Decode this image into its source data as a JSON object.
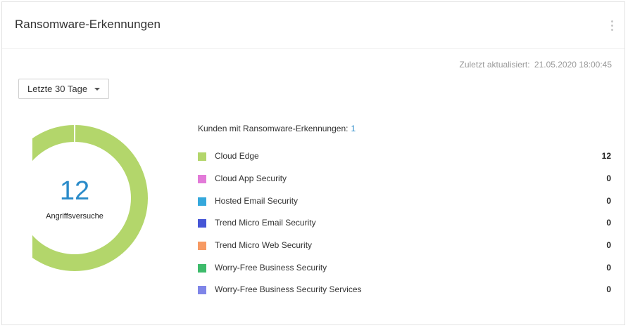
{
  "widget": {
    "title": "Ransomware-Erkennungen",
    "last_updated_label": "Zuletzt aktualisiert:",
    "last_updated_value": "21.05.2020 18:00:45",
    "period_select": {
      "selected": "Letzte 30 Tage"
    }
  },
  "donut": {
    "total": "12",
    "caption": "Angriffsversuche"
  },
  "customers": {
    "label": "Kunden mit Ransomware-Erkennungen:",
    "count": "1"
  },
  "legend": [
    {
      "label": "Cloud Edge",
      "value": "12",
      "color": "#b3d66b"
    },
    {
      "label": "Cloud App Security",
      "value": "0",
      "color": "#e27ad8"
    },
    {
      "label": "Hosted Email Security",
      "value": "0",
      "color": "#35a8dc"
    },
    {
      "label": "Trend Micro Email Security",
      "value": "0",
      "color": "#4656d6"
    },
    {
      "label": "Trend Micro Web Security",
      "value": "0",
      "color": "#f79a63"
    },
    {
      "label": "Worry-Free Business Security",
      "value": "0",
      "color": "#3dbb6b"
    },
    {
      "label": "Worry-Free Business Security Services",
      "value": "0",
      "color": "#7f85e8"
    }
  ],
  "chart_data": {
    "type": "pie",
    "categories": [
      "Cloud Edge",
      "Cloud App Security",
      "Hosted Email Security",
      "Trend Micro Email Security",
      "Trend Micro Web Security",
      "Worry-Free Business Security",
      "Worry-Free Business Security Services"
    ],
    "values": [
      12,
      0,
      0,
      0,
      0,
      0,
      0
    ],
    "colors": [
      "#b3d66b",
      "#e27ad8",
      "#35a8dc",
      "#4656d6",
      "#f79a63",
      "#3dbb6b",
      "#7f85e8"
    ],
    "title": "",
    "center_label": "12"
  }
}
